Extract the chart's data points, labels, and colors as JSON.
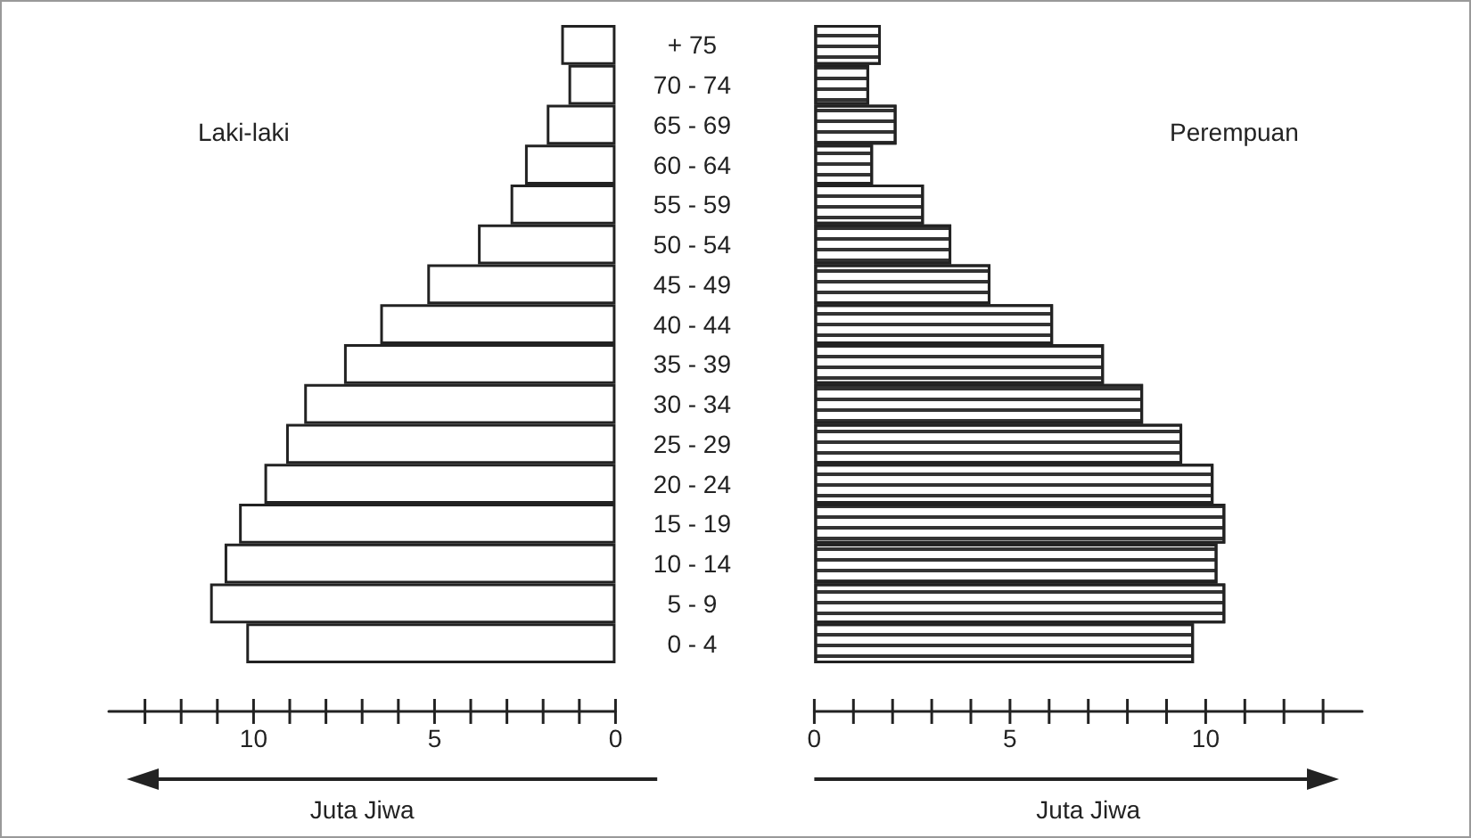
{
  "chart_data": [
    {
      "type": "bar",
      "orientation": "horizontal",
      "xlabel": "Juta Jiwa",
      "categories": [
        "+ 75",
        "70 - 74",
        "65 - 69",
        "60 - 64",
        "55 - 59",
        "50 - 54",
        "45 - 49",
        "40 - 44",
        "35 - 39",
        "30 - 34",
        "25 - 29",
        "20 - 24",
        "15 - 19",
        "10 - 14",
        "5 - 9",
        "0 - 4"
      ],
      "series": [
        {
          "name": "Laki-laki",
          "color": "#ffffff",
          "values": [
            1.5,
            1.3,
            1.9,
            2.5,
            2.9,
            3.8,
            5.2,
            6.5,
            7.5,
            8.6,
            9.1,
            9.7,
            10.4,
            10.8,
            11.2,
            10.2
          ]
        }
      ],
      "xlim": [
        14,
        0
      ],
      "xticks": [
        0,
        {
          "value": 1,
          "label": null
        },
        {
          "value": 2,
          "label": null
        },
        {
          "value": 3,
          "label": null
        },
        {
          "value": 4,
          "label": null
        },
        5,
        {
          "value": 6,
          "label": null
        },
        {
          "value": 7,
          "label": null
        },
        {
          "value": 8,
          "label": null
        },
        {
          "value": 9,
          "label": null
        },
        10,
        {
          "value": 11,
          "label": null
        },
        {
          "value": 12,
          "label": null
        },
        {
          "value": 13,
          "label": null
        }
      ],
      "grid": false,
      "legend": false
    },
    {
      "type": "bar",
      "orientation": "horizontal",
      "xlabel": "Juta Jiwa",
      "categories": [
        null,
        null,
        null,
        null,
        null,
        null,
        null,
        null,
        null,
        null,
        null,
        null,
        null,
        null,
        null,
        null
      ],
      "series": [
        {
          "name": "Perempuan",
          "color": "#ffffff",
          "values": [
            1.7,
            1.4,
            2.1,
            1.5,
            2.8,
            3.5,
            4.5,
            6.1,
            7.4,
            8.4,
            9.4,
            10.2,
            10.5,
            10.3,
            10.5,
            9.7
          ]
        }
      ],
      "xlim": [
        0,
        14
      ],
      "xticks": [
        0,
        {
          "value": 1,
          "label": null
        },
        {
          "value": 2,
          "label": null
        },
        {
          "value": 3,
          "label": null
        },
        {
          "value": 4,
          "label": null
        },
        5,
        {
          "value": 6,
          "label": null
        },
        {
          "value": 7,
          "label": null
        },
        {
          "value": 8,
          "label": null
        },
        {
          "value": 9,
          "label": null
        },
        10,
        {
          "value": 11,
          "label": null
        },
        {
          "value": 12,
          "label": null
        },
        {
          "value": 13,
          "label": null
        }
      ],
      "grid": false,
      "legend": false,
      "tick_labels": "x"
    }
  ]
}
